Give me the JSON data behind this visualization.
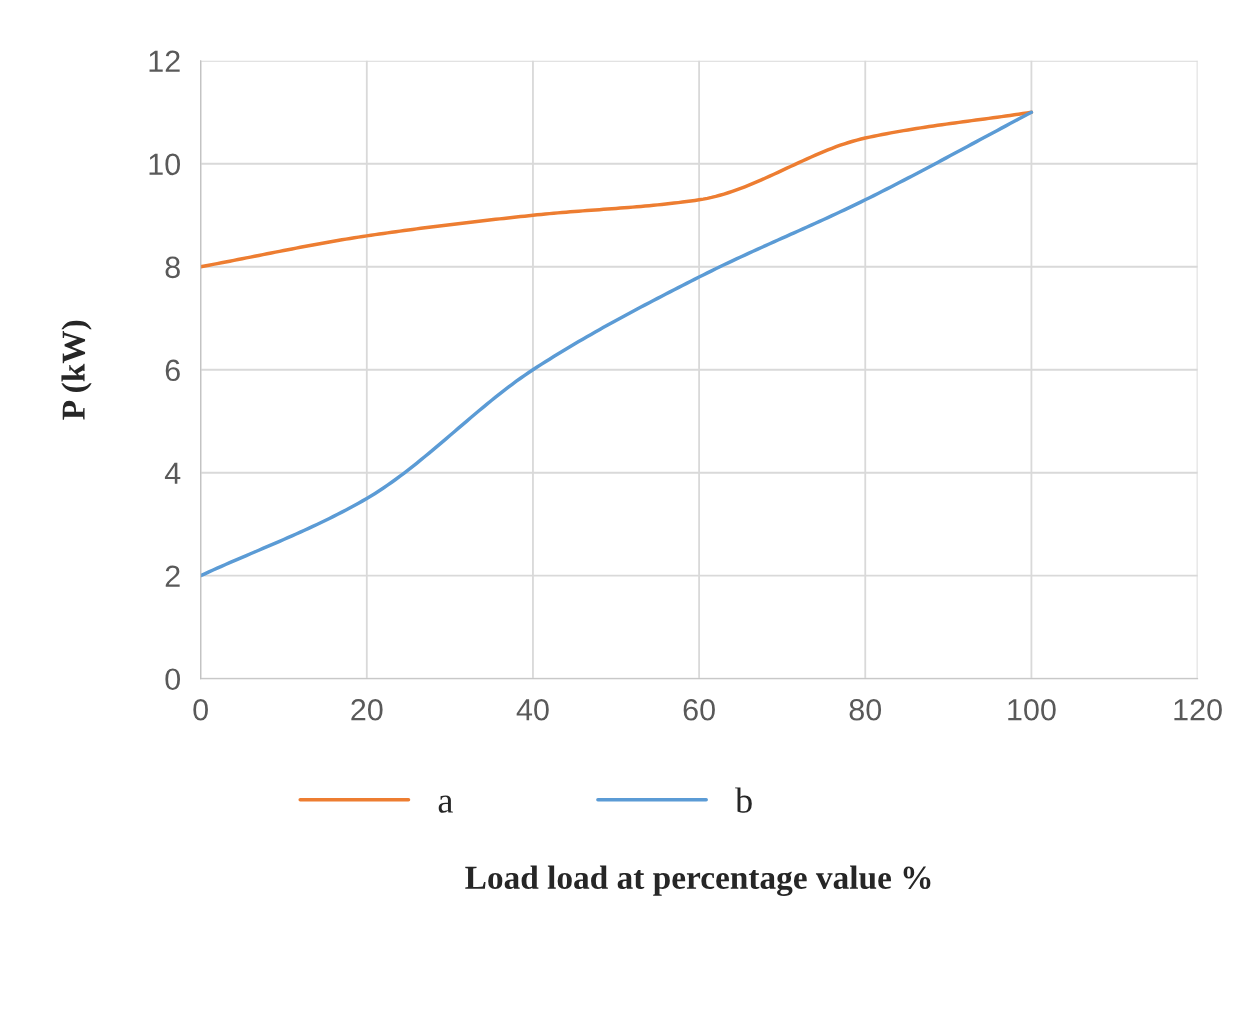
{
  "chart_data": {
    "type": "line",
    "xlabel": "Load load at percentage value %",
    "ylabel": "P (kW)",
    "x": [
      0,
      20,
      40,
      60,
      80,
      100
    ],
    "series": [
      {
        "name": "a",
        "color": "#ed7d31",
        "values": [
          8,
          8.6,
          9,
          9.3,
          10.5,
          11
        ]
      },
      {
        "name": "b",
        "color": "#5b9bd5",
        "values": [
          2,
          3.5,
          6,
          7.8,
          9.3,
          11
        ]
      }
    ],
    "xlim": [
      0,
      120
    ],
    "xticks": [
      0,
      20,
      40,
      60,
      80,
      100,
      120
    ],
    "ylim": [
      0,
      12
    ],
    "yticks": [
      0,
      2,
      4,
      6,
      8,
      10,
      12
    ],
    "grid": true,
    "legend": "bottom",
    "marker": "none",
    "line_style": "solid"
  }
}
